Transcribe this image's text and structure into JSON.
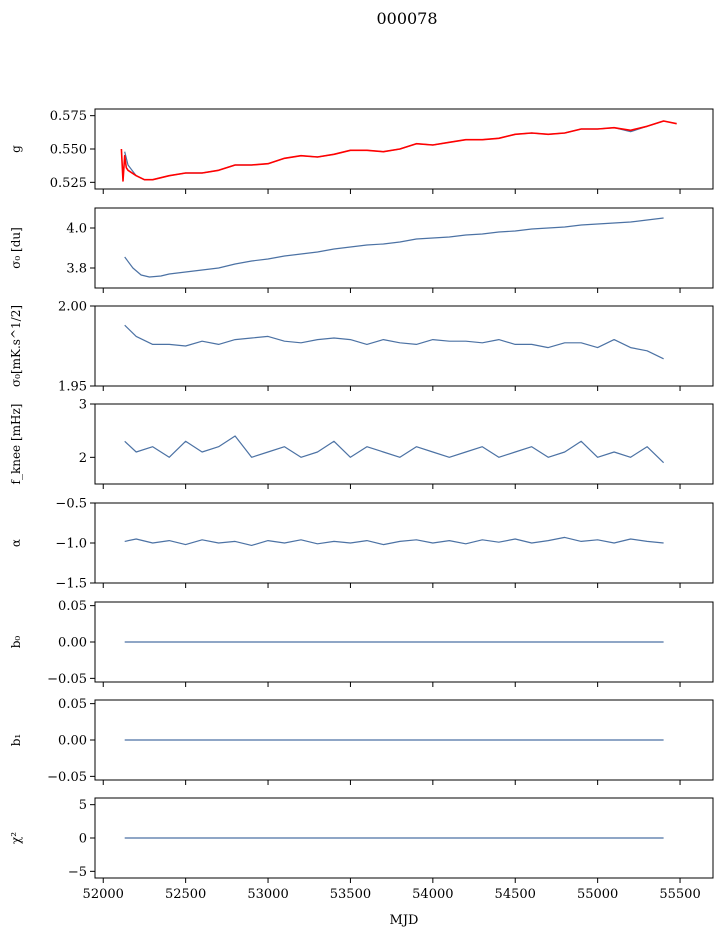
{
  "figure": {
    "suptitle": "000078",
    "xlabel": "MJD"
  },
  "colors": {
    "series": "#4c72a4",
    "overlay": "#ff0000",
    "axes": "#000000"
  },
  "chart_data": [
    {
      "type": "line",
      "ylabel": "g",
      "ylim": [
        0.52,
        0.58
      ],
      "yticks": [
        0.525,
        0.55,
        0.575
      ],
      "ytick_labels": [
        "0.525",
        "0.550",
        "0.575"
      ],
      "xlim": [
        51950,
        55700
      ],
      "grid": false,
      "series": [
        {
          "color": "#4c72a4",
          "x": [
            52130,
            52150,
            52200,
            52250,
            52300,
            52400,
            52500,
            52600,
            52700,
            52800,
            52900,
            53000,
            53100,
            53200,
            53300,
            53400,
            53500,
            53600,
            53700,
            53800,
            53900,
            54000,
            54100,
            54200,
            54300,
            54400,
            54500,
            54600,
            54700,
            54800,
            54900,
            55000,
            55100,
            55200,
            55300,
            55400
          ],
          "y": [
            0.548,
            0.538,
            0.53,
            0.527,
            0.527,
            0.53,
            0.532,
            0.532,
            0.534,
            0.538,
            0.538,
            0.539,
            0.543,
            0.545,
            0.544,
            0.546,
            0.549,
            0.549,
            0.548,
            0.55,
            0.554,
            0.553,
            0.555,
            0.557,
            0.557,
            0.558,
            0.561,
            0.562,
            0.561,
            0.562,
            0.565,
            0.565,
            0.566,
            0.563,
            0.567,
            0.571
          ]
        },
        {
          "color": "#ff0000",
          "x": [
            52110,
            52120,
            52130,
            52140,
            52150,
            52200,
            52250,
            52300,
            52400,
            52500,
            52600,
            52700,
            52800,
            52900,
            53000,
            53100,
            53200,
            53300,
            53400,
            53500,
            53600,
            53700,
            53800,
            53900,
            54000,
            54100,
            54200,
            54300,
            54400,
            54500,
            54600,
            54700,
            54800,
            54900,
            55000,
            55100,
            55200,
            55300,
            55400,
            55480
          ],
          "y": [
            0.55,
            0.526,
            0.545,
            0.536,
            0.534,
            0.53,
            0.527,
            0.527,
            0.53,
            0.532,
            0.532,
            0.534,
            0.538,
            0.538,
            0.539,
            0.543,
            0.545,
            0.544,
            0.546,
            0.549,
            0.549,
            0.548,
            0.55,
            0.554,
            0.553,
            0.555,
            0.557,
            0.557,
            0.558,
            0.561,
            0.562,
            0.561,
            0.562,
            0.565,
            0.565,
            0.566,
            0.564,
            0.567,
            0.571,
            0.569
          ]
        }
      ]
    },
    {
      "type": "line",
      "ylabel": "σ₀ [du]",
      "ylim": [
        3.7,
        4.1
      ],
      "yticks": [
        3.8,
        4.0
      ],
      "ytick_labels": [
        "3.8",
        "4.0"
      ],
      "xlim": [
        51950,
        55700
      ],
      "grid": false,
      "series": [
        {
          "color": "#4c72a4",
          "x": [
            52130,
            52180,
            52230,
            52280,
            52350,
            52400,
            52500,
            52600,
            52700,
            52800,
            52900,
            53000,
            53100,
            53200,
            53300,
            53400,
            53500,
            53600,
            53700,
            53800,
            53900,
            54000,
            54100,
            54200,
            54300,
            54400,
            54500,
            54600,
            54700,
            54800,
            54900,
            55000,
            55100,
            55200,
            55300,
            55400
          ],
          "y": [
            3.855,
            3.8,
            3.765,
            3.755,
            3.76,
            3.77,
            3.78,
            3.79,
            3.8,
            3.82,
            3.835,
            3.845,
            3.86,
            3.87,
            3.88,
            3.895,
            3.905,
            3.915,
            3.92,
            3.93,
            3.945,
            3.95,
            3.955,
            3.965,
            3.97,
            3.98,
            3.985,
            3.995,
            4.0,
            4.005,
            4.015,
            4.02,
            4.025,
            4.03,
            4.04,
            4.05
          ]
        }
      ]
    },
    {
      "type": "line",
      "ylabel": "σ₀[mK.s^1/2]",
      "ylim": [
        1.95,
        2.0
      ],
      "yticks": [
        1.95,
        2.0
      ],
      "ytick_labels": [
        "1.95",
        "2.00"
      ],
      "xlim": [
        51950,
        55700
      ],
      "grid": false,
      "series": [
        {
          "color": "#4c72a4",
          "x": [
            52130,
            52200,
            52300,
            52400,
            52500,
            52600,
            52700,
            52800,
            52900,
            53000,
            53100,
            53200,
            53300,
            53400,
            53500,
            53600,
            53700,
            53800,
            53900,
            54000,
            54100,
            54200,
            54300,
            54400,
            54500,
            54600,
            54700,
            54800,
            54900,
            55000,
            55100,
            55200,
            55300,
            55400
          ],
          "y": [
            1.988,
            1.981,
            1.976,
            1.976,
            1.975,
            1.978,
            1.976,
            1.979,
            1.98,
            1.981,
            1.978,
            1.977,
            1.979,
            1.98,
            1.979,
            1.976,
            1.979,
            1.977,
            1.976,
            1.979,
            1.978,
            1.978,
            1.977,
            1.979,
            1.976,
            1.976,
            1.974,
            1.977,
            1.977,
            1.974,
            1.979,
            1.974,
            1.972,
            1.967
          ]
        }
      ]
    },
    {
      "type": "line",
      "ylabel": "f_knee [mHz]",
      "ylim": [
        1.5,
        3.0
      ],
      "yticks": [
        2,
        3
      ],
      "ytick_labels": [
        "2",
        "3"
      ],
      "xlim": [
        51950,
        55700
      ],
      "grid": false,
      "series": [
        {
          "color": "#4c72a4",
          "x": [
            52130,
            52200,
            52300,
            52400,
            52500,
            52600,
            52700,
            52800,
            52900,
            53000,
            53100,
            53200,
            53300,
            53400,
            53500,
            53600,
            53700,
            53800,
            53900,
            54000,
            54100,
            54200,
            54300,
            54400,
            54500,
            54600,
            54700,
            54800,
            54900,
            55000,
            55100,
            55200,
            55300,
            55400
          ],
          "y": [
            2.3,
            2.1,
            2.2,
            2.0,
            2.3,
            2.1,
            2.2,
            2.4,
            2.0,
            2.1,
            2.2,
            2.0,
            2.1,
            2.3,
            2.0,
            2.2,
            2.1,
            2.0,
            2.2,
            2.1,
            2.0,
            2.1,
            2.2,
            2.0,
            2.1,
            2.2,
            2.0,
            2.1,
            2.3,
            2.0,
            2.1,
            2.0,
            2.2,
            1.9
          ]
        }
      ]
    },
    {
      "type": "line",
      "ylabel": "α",
      "ylim": [
        -1.5,
        -0.5
      ],
      "yticks": [
        -1.5,
        -1.0,
        -0.5
      ],
      "ytick_labels": [
        "−1.5",
        "−1.0",
        "−0.5"
      ],
      "xlim": [
        51950,
        55700
      ],
      "grid": false,
      "series": [
        {
          "color": "#4c72a4",
          "x": [
            52130,
            52200,
            52300,
            52400,
            52500,
            52600,
            52700,
            52800,
            52900,
            53000,
            53100,
            53200,
            53300,
            53400,
            53500,
            53600,
            53700,
            53800,
            53900,
            54000,
            54100,
            54200,
            54300,
            54400,
            54500,
            54600,
            54700,
            54800,
            54900,
            55000,
            55100,
            55200,
            55300,
            55400
          ],
          "y": [
            -0.98,
            -0.95,
            -1.0,
            -0.97,
            -1.02,
            -0.96,
            -1.0,
            -0.98,
            -1.03,
            -0.97,
            -1.0,
            -0.96,
            -1.01,
            -0.98,
            -1.0,
            -0.97,
            -1.02,
            -0.98,
            -0.96,
            -1.0,
            -0.97,
            -1.01,
            -0.96,
            -0.99,
            -0.95,
            -1.0,
            -0.97,
            -0.93,
            -0.98,
            -0.96,
            -1.0,
            -0.95,
            -0.98,
            -1.0
          ]
        }
      ]
    },
    {
      "type": "line",
      "ylabel": "b₀",
      "ylim": [
        -0.055,
        0.055
      ],
      "yticks": [
        -0.05,
        0.0,
        0.05
      ],
      "ytick_labels": [
        "−0.05",
        "0.00",
        "0.05"
      ],
      "xlim": [
        51950,
        55700
      ],
      "grid": false,
      "series": [
        {
          "color": "#4c72a4",
          "x": [
            52130,
            55400
          ],
          "y": [
            0.0,
            0.0
          ]
        }
      ]
    },
    {
      "type": "line",
      "ylabel": "b₁",
      "ylim": [
        -0.055,
        0.055
      ],
      "yticks": [
        -0.05,
        0.0,
        0.05
      ],
      "ytick_labels": [
        "−0.05",
        "0.00",
        "0.05"
      ],
      "xlim": [
        51950,
        55700
      ],
      "grid": false,
      "series": [
        {
          "color": "#4c72a4",
          "x": [
            52130,
            55400
          ],
          "y": [
            0.0,
            0.0
          ]
        }
      ]
    },
    {
      "type": "line",
      "ylabel": "χ²",
      "ylim": [
        -6,
        6
      ],
      "yticks": [
        -5,
        0,
        5
      ],
      "ytick_labels": [
        "−5",
        "0",
        "5"
      ],
      "xlim": [
        51950,
        55700
      ],
      "xticks": [
        52000,
        52500,
        53000,
        53500,
        54000,
        54500,
        55000,
        55500
      ],
      "xtick_labels": [
        "52000",
        "52500",
        "53000",
        "53500",
        "54000",
        "54500",
        "55000",
        "55500"
      ],
      "grid": false,
      "series": [
        {
          "color": "#4c72a4",
          "x": [
            52130,
            55400
          ],
          "y": [
            0.0,
            0.0
          ]
        }
      ]
    }
  ]
}
